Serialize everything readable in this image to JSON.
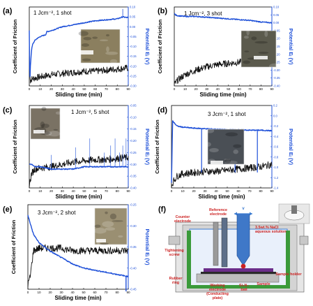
{
  "chart_data": [
    {
      "panel": "(a)",
      "type": "line",
      "annotation": "1 Jcm⁻², 1 shot",
      "xlabel": "Sliding time (min)",
      "ylabel": "Coefficient of Friction",
      "y2label": "Potential Eᵢ (V)",
      "xlim": [
        0,
        90
      ],
      "xticks": [
        "0",
        "10",
        "20",
        "30",
        "40",
        "50",
        "60",
        "70",
        "80",
        "90"
      ],
      "ylim": [
        0,
        0.35
      ],
      "yticks": [],
      "y2lim": [
        -0.3,
        0.1
      ],
      "y2ticks": [
        "-0.30",
        "-0.25",
        "-0.20",
        "-0.15",
        "-0.10",
        "-0.05",
        "0.00",
        "0.05",
        "0.10"
      ],
      "inset": true,
      "series": [
        {
          "axis": "left",
          "color": "#111111",
          "x": [
            0,
            1,
            2,
            5,
            10,
            15,
            20,
            30,
            40,
            50,
            60,
            70,
            80,
            90
          ],
          "values": [
            0.13,
            0.02,
            0.03,
            0.035,
            0.04,
            0.045,
            0.05,
            0.055,
            0.06,
            0.065,
            0.065,
            0.07,
            0.075,
            0.08
          ]
        },
        {
          "axis": "right",
          "color": "#1d4fd8",
          "x": [
            0,
            0.5,
            1,
            2,
            3,
            5,
            7,
            10,
            15,
            16,
            20,
            25,
            30,
            40,
            50,
            60,
            70,
            80,
            85,
            90
          ],
          "values": [
            -0.02,
            -0.29,
            -0.2,
            -0.12,
            -0.09,
            -0.07,
            -0.06,
            -0.05,
            -0.04,
            -0.025,
            -0.02,
            -0.01,
            0.0,
            0.01,
            0.02,
            0.03,
            0.035,
            0.04,
            0.05,
            0.045
          ]
        }
      ]
    },
    {
      "panel": "(b)",
      "type": "line",
      "annotation": "1 Jcm⁻², 3 shot",
      "xlabel": "Sliding time (min)",
      "ylabel": "Coefficient of Friction",
      "y2label": "Potential Eᵢ (V)",
      "xlim": [
        0,
        90
      ],
      "xticks": [
        "0",
        "10",
        "20",
        "30",
        "40",
        "50",
        "60",
        "70",
        "80",
        "90"
      ],
      "ylim": [
        0,
        0.35
      ],
      "yticks": [],
      "y2lim": [
        -0.4,
        0.1
      ],
      "y2ticks": [
        "-0.40",
        "-0.35",
        "-0.30",
        "-0.25",
        "-0.20",
        "-0.15",
        "-0.10",
        "-0.05",
        "0.00",
        "0.05",
        "0.10"
      ],
      "inset": true,
      "series": [
        {
          "axis": "left",
          "color": "#111111",
          "x": [
            0,
            3,
            10,
            20,
            30,
            40,
            50,
            60,
            70,
            80,
            90
          ],
          "values": [
            0.005,
            0.025,
            0.05,
            0.07,
            0.085,
            0.095,
            0.1,
            0.105,
            0.11,
            0.115,
            0.12
          ]
        },
        {
          "axis": "right",
          "color": "#1d4fd8",
          "x": [
            0,
            1,
            3,
            10,
            20,
            30,
            40,
            50,
            60,
            70,
            80,
            90
          ],
          "values": [
            0.06,
            0.05,
            0.045,
            0.04,
            0.04,
            0.035,
            0.03,
            0.025,
            0.02,
            0.015,
            0.005,
            0.0
          ]
        }
      ]
    },
    {
      "panel": "(c)",
      "type": "line",
      "annotation": "1 Jcm⁻², 5 shot",
      "xlabel": "Sliding time (min)",
      "ylabel": "Coefficient of Friction",
      "y2label": "Potential Eᵢ (V)",
      "xlim": [
        0,
        90
      ],
      "xticks": [
        "0",
        "10",
        "20",
        "30",
        "40",
        "50",
        "60",
        "70",
        "80",
        "90"
      ],
      "ylim": [
        0,
        0.35
      ],
      "yticks": [],
      "y2lim": [
        -0.4,
        -0.05
      ],
      "y2ticks": [
        "-0.40",
        "-0.35",
        "-0.30",
        "-0.25",
        "-0.20",
        "-0.15",
        "-0.10",
        "-0.05"
      ],
      "inset": true,
      "series": [
        {
          "axis": "left",
          "color": "#111111",
          "x": [
            0,
            2,
            5,
            10,
            20,
            30,
            40,
            50,
            60,
            70,
            80,
            90
          ],
          "values": [
            0.01,
            0.06,
            0.08,
            0.085,
            0.09,
            0.1,
            0.11,
            0.115,
            0.12,
            0.12,
            0.125,
            0.13
          ]
        },
        {
          "axis": "right",
          "color": "#1d4fd8",
          "x": [
            0,
            2,
            5,
            10,
            20,
            30,
            40,
            50,
            60,
            70,
            80,
            90
          ],
          "values": [
            -0.3,
            -0.3,
            -0.31,
            -0.31,
            -0.32,
            -0.32,
            -0.32,
            -0.31,
            -0.31,
            -0.31,
            -0.31,
            -0.31
          ]
        }
      ]
    },
    {
      "panel": "(d)",
      "type": "line",
      "annotation": "3 Jcm⁻², 1 shot",
      "xlabel": "Sliding time (min)",
      "ylabel": "Coefficient of Friction",
      "y2label": "Potential Eᵢ (V)",
      "xlim": [
        0,
        90
      ],
      "xticks": [
        "0",
        "10",
        "20",
        "30",
        "40",
        "50",
        "60",
        "70",
        "80",
        "90"
      ],
      "ylim": [
        0,
        0.35
      ],
      "yticks": [],
      "y2lim": [
        -1.4,
        0.2
      ],
      "y2ticks": [
        "-1.4",
        "-1.2",
        "-1.0",
        "-0.8",
        "-0.6",
        "-0.4",
        "-0.2",
        "0.0",
        "0.2"
      ],
      "inset": true,
      "series": [
        {
          "axis": "left",
          "color": "#111111",
          "x": [
            0,
            2,
            5,
            10,
            20,
            30,
            40,
            50,
            60,
            70,
            80,
            90
          ],
          "values": [
            0.01,
            0.03,
            0.05,
            0.06,
            0.065,
            0.07,
            0.07,
            0.075,
            0.08,
            0.085,
            0.09,
            0.1
          ]
        },
        {
          "axis": "right",
          "color": "#1d4fd8",
          "x": [
            0,
            1,
            3,
            5,
            10,
            20,
            30,
            40,
            50,
            60,
            70,
            80,
            90
          ],
          "values": [
            -1.3,
            -0.1,
            -0.15,
            -0.2,
            -0.22,
            -0.24,
            -0.25,
            -0.26,
            -0.27,
            -0.27,
            -0.28,
            -0.28,
            -0.29
          ]
        }
      ]
    },
    {
      "panel": "(e)",
      "type": "line",
      "annotation": "3 Jcm⁻², 2 shot",
      "xlabel": "Sliding time (min)",
      "ylabel": "Coefficient of Friction",
      "y2label": "Potential Eᵢ (V)",
      "xlim": [
        0,
        90
      ],
      "xticks": [
        "0",
        "10",
        "20",
        "30",
        "40",
        "50",
        "60",
        "70",
        "80",
        "90"
      ],
      "ylim": [
        0,
        0.35
      ],
      "yticks": [],
      "y2lim": [
        -0.45,
        -0.25
      ],
      "y2ticks": [
        "-0.45",
        "-0.40",
        "-0.35",
        "-0.30",
        "-0.25"
      ],
      "inset": true,
      "series": [
        {
          "axis": "left",
          "color": "#111111",
          "x": [
            0,
            2,
            5,
            10,
            20,
            30,
            40,
            50,
            60,
            70,
            80,
            90
          ],
          "values": [
            0.02,
            0.05,
            0.16,
            0.17,
            0.17,
            0.17,
            0.16,
            0.16,
            0.16,
            0.16,
            0.16,
            0.16
          ]
        },
        {
          "axis": "right",
          "color": "#1d4fd8",
          "x": [
            0,
            5,
            10,
            20,
            30,
            40,
            50,
            60,
            70,
            80,
            90
          ],
          "values": [
            -0.275,
            -0.32,
            -0.34,
            -0.36,
            -0.375,
            -0.39,
            -0.4,
            -0.405,
            -0.41,
            -0.415,
            -0.42
          ]
        }
      ]
    }
  ],
  "schematic": {
    "panel": "(f)",
    "labels": {
      "counter": "Counter electrode",
      "reference": "Reference electrode",
      "velocity": "v",
      "nacl": "3.5wt.% NaCl aqueous solution",
      "tightening": "Tightening screw",
      "rubber": "Rubber ring",
      "working": "Working electrode (Conducting plate)",
      "ball": "Si₃N₄ ball",
      "sample": "Sample",
      "holder": "Sample holder"
    },
    "colors": {
      "label": "#cc2222",
      "liquid": "#3a7ad0",
      "rubber": "#3a9a3a",
      "sample": "#6b2d8a"
    }
  }
}
